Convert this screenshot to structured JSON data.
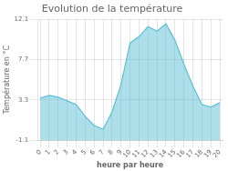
{
  "chart_data": {
    "type": "area",
    "title": "Evolution de la température",
    "xlabel": "heure par heure",
    "ylabel": "Température en °C",
    "x": [
      0,
      1,
      2,
      3,
      4,
      5,
      6,
      7,
      8,
      9,
      10,
      11,
      12,
      13,
      14,
      15,
      16,
      17,
      18,
      19,
      20
    ],
    "values": [
      3.5,
      3.8,
      3.6,
      3.2,
      2.8,
      1.5,
      0.5,
      0.1,
      2.0,
      5.0,
      9.5,
      10.2,
      11.3,
      10.8,
      11.6,
      9.8,
      7.2,
      4.8,
      2.8,
      2.5,
      3.0
    ],
    "color": "#5bbfd8",
    "xlim": [
      -0.3,
      20.3
    ],
    "xticks": [
      0,
      1,
      2,
      3,
      4,
      5,
      6,
      7,
      8,
      9,
      10,
      11,
      12,
      13,
      14,
      15,
      16,
      17,
      18,
      19,
      20
    ],
    "ylim": [
      -1.1,
      12.1
    ],
    "yticks": [
      -1.1,
      3.3,
      7.7,
      12.1
    ],
    "grid": true
  }
}
